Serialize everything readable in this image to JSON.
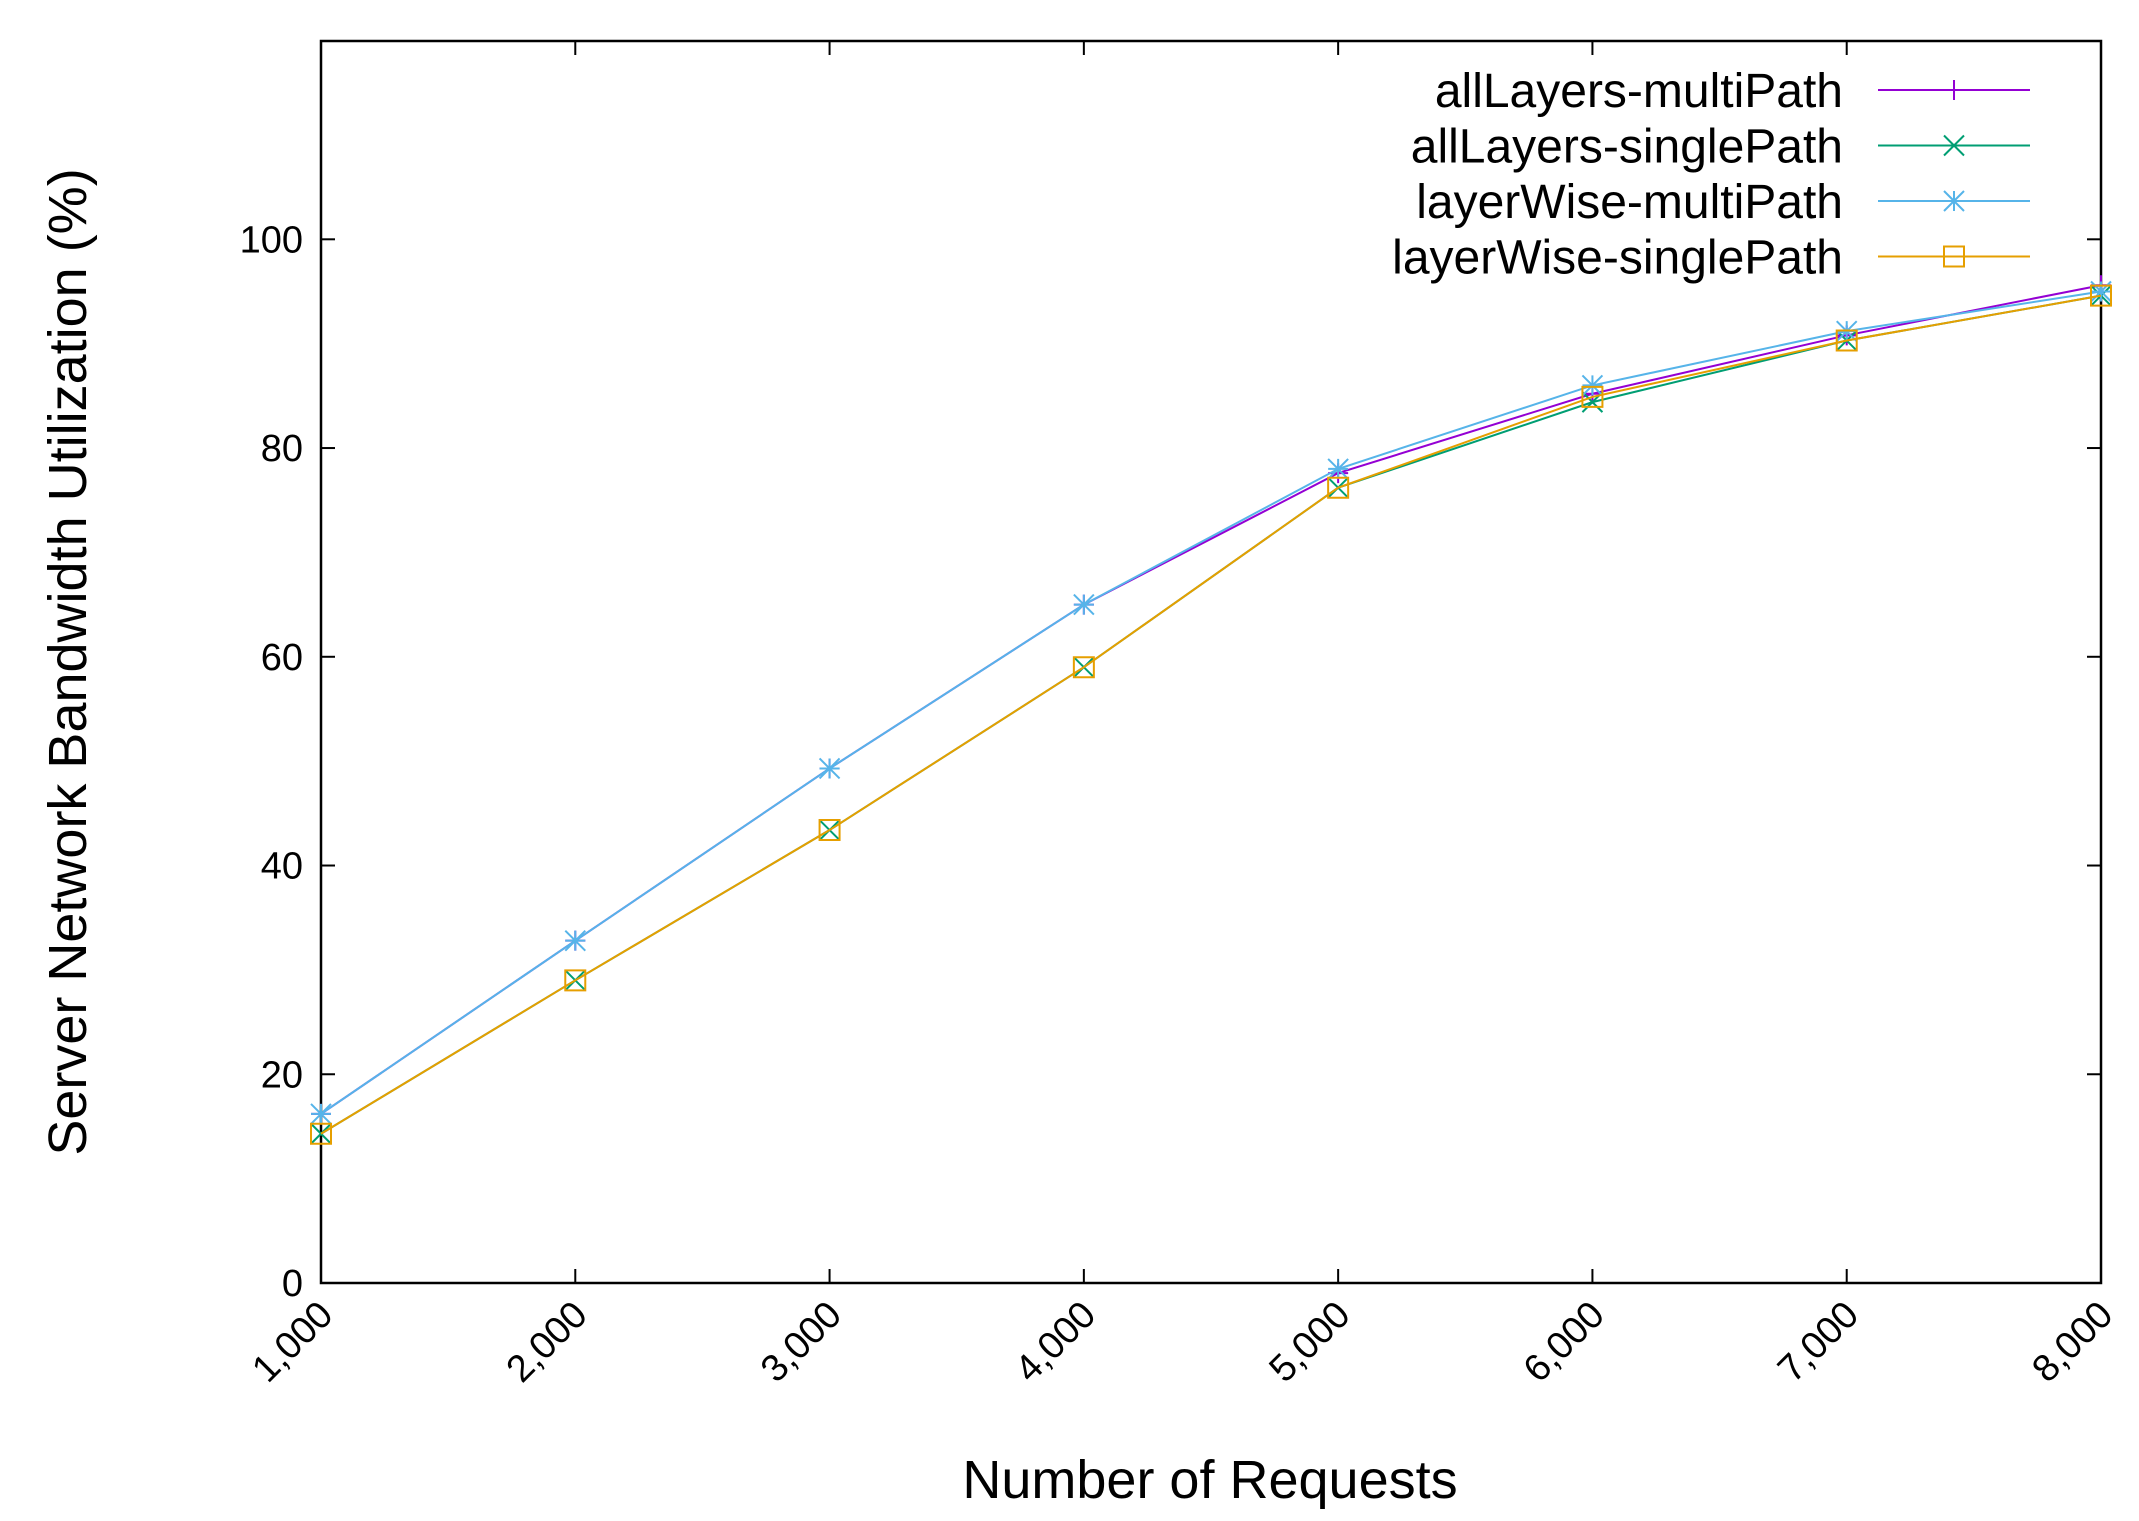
{
  "chart_data": {
    "type": "line",
    "x_label": "Number of Requests",
    "y_label": "Server Network Bandwidth Utilization (%)",
    "x": [
      1000,
      2000,
      3000,
      4000,
      5000,
      6000,
      7000,
      8000
    ],
    "xlim": [
      1000,
      8000
    ],
    "xticks": [
      {
        "value": 1000,
        "label": "1,000"
      },
      {
        "value": 2000,
        "label": "2,000"
      },
      {
        "value": 3000,
        "label": "3,000"
      },
      {
        "value": 4000,
        "label": "4,000"
      },
      {
        "value": 5000,
        "label": "5,000"
      },
      {
        "value": 6000,
        "label": "6,000"
      },
      {
        "value": 7000,
        "label": "7,000"
      },
      {
        "value": 8000,
        "label": "8,000"
      }
    ],
    "ylim": [
      0,
      119
    ],
    "yticks": [
      0,
      20,
      40,
      60,
      80,
      100
    ],
    "legend": "top-right",
    "series": [
      {
        "name": "allLayers-multiPath",
        "color": "#9400d3",
        "marker": "plus",
        "values": [
          16.2,
          32.8,
          49.3,
          65.0,
          77.6,
          85.2,
          90.8,
          95.6
        ]
      },
      {
        "name": "allLayers-singlePath",
        "color": "#009e73",
        "marker": "cross",
        "values": [
          14.3,
          29.0,
          43.4,
          59.0,
          76.2,
          84.4,
          90.3,
          94.6
        ]
      },
      {
        "name": "layerWise-multiPath",
        "color": "#56b4e9",
        "marker": "star",
        "values": [
          16.2,
          32.8,
          49.3,
          65.0,
          78.0,
          86.0,
          91.2,
          95.0
        ]
      },
      {
        "name": "layerWise-singlePath",
        "color": "#e69f00",
        "marker": "square",
        "values": [
          14.3,
          29.0,
          43.4,
          59.0,
          76.2,
          84.9,
          90.3,
          94.6
        ]
      }
    ]
  }
}
